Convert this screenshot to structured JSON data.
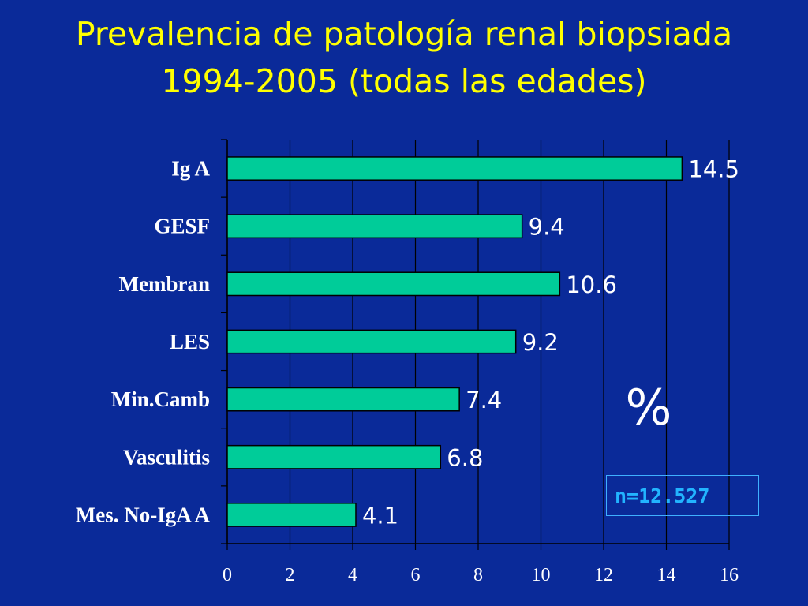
{
  "slide": {
    "title_line_1": "Prevalencia de patología renal biopsiada",
    "title_line_2": "1994-2005   (todas las edades)",
    "sample_note": "n=12.527"
  },
  "colors": {
    "background": "#0a2a99",
    "title": "#ffff00",
    "bar_fill": "#00cc99",
    "text": "#ffffff",
    "note": "#22b4ff"
  },
  "chart_data": {
    "type": "bar",
    "orientation": "horizontal",
    "categories": [
      "Ig A",
      "GESF",
      "Membran",
      "LES",
      "Min.Camb",
      "Vasculitis",
      "Mes. No-IgA A"
    ],
    "values": [
      14.5,
      9.4,
      10.6,
      9.2,
      7.4,
      6.8,
      4.1
    ],
    "value_labels": [
      "14.5",
      "9.4",
      "10.6",
      "9.2",
      "7.4",
      "6.8",
      "4.1"
    ],
    "xticks": [
      "0",
      "2",
      "4",
      "6",
      "8",
      "10",
      "12",
      "14",
      "16"
    ],
    "xlim": [
      0,
      16
    ],
    "unit_label": "%",
    "grid": "vertical",
    "data_labels": true
  }
}
